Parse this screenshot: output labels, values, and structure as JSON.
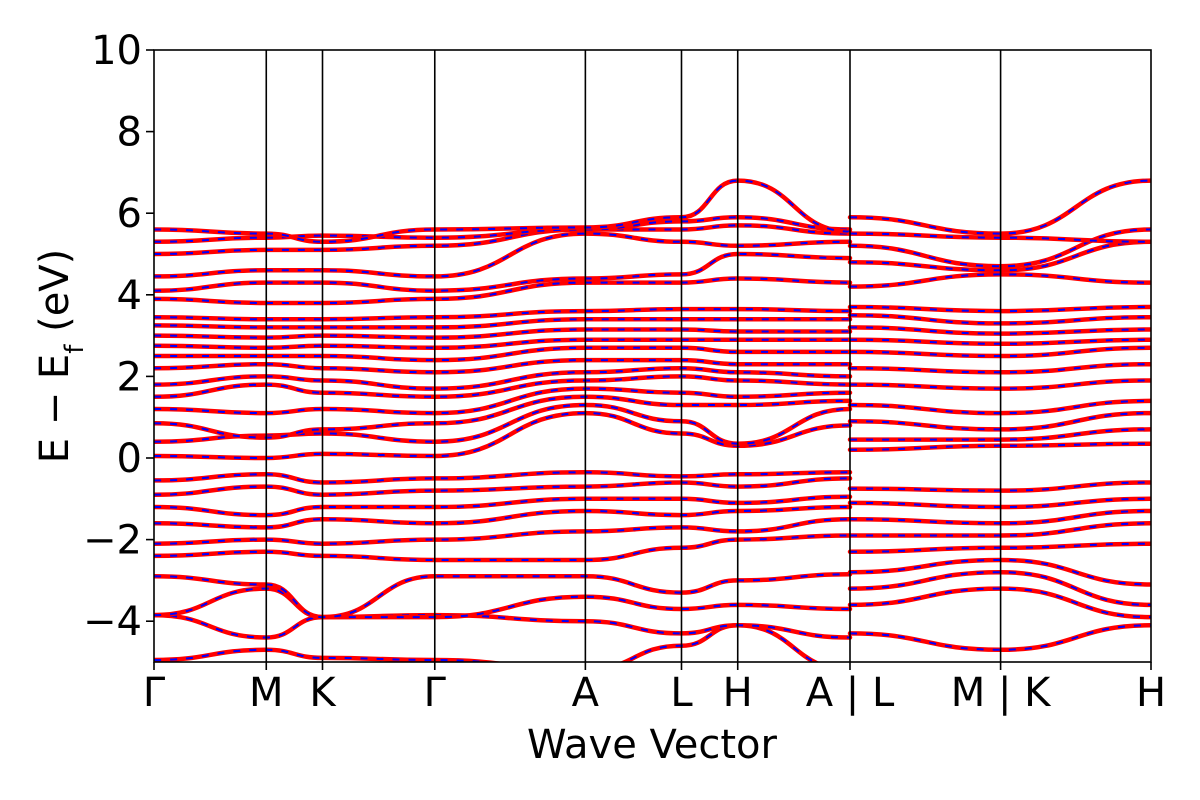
{
  "chart_data": {
    "type": "line",
    "xlabel": "Wave Vector",
    "ylabel": "E − E_f (eV)",
    "ylabel_parts": {
      "main": "E − E",
      "sub": "f",
      "tail": " (eV)"
    },
    "ylim": [
      -5,
      10
    ],
    "yticks": [
      -4,
      -2,
      0,
      2,
      4,
      6,
      8,
      10
    ],
    "ytick_labels": [
      "−4",
      "−2",
      "0",
      "2",
      "4",
      "6",
      "8",
      "10"
    ],
    "grid": false,
    "line_colors": [
      "#ff0000",
      "#0000ff"
    ],
    "line_style": "red solid band overlaid by blue dashed band",
    "kpath": {
      "positions": [
        0,
        0.577,
        0.866,
        1.443,
        2.217,
        2.711,
        3.0,
        3.577,
        4.351,
        5.124
      ],
      "labels": [
        "Γ",
        "M",
        "K",
        "Γ",
        "A",
        "L",
        "H",
        "A | L",
        "M | K",
        "H"
      ]
    },
    "bands": [
      {
        "x": [
          0,
          0.577,
          0.866,
          1.443,
          2.217,
          2.711,
          3.0,
          3.577
        ],
        "y": [
          -4.95,
          -4.7,
          -4.9,
          -4.95,
          -5.2,
          -4.6,
          -4.1,
          -5.2
        ]
      },
      {
        "x": [
          0,
          0.577,
          0.866,
          1.443,
          2.217,
          2.711,
          3.0,
          3.577
        ],
        "y": [
          -3.85,
          -4.4,
          -3.9,
          -3.85,
          -4.0,
          -4.3,
          -4.1,
          -4.4
        ]
      },
      {
        "x": [
          0,
          0.577,
          0.866,
          1.443,
          2.217,
          2.711,
          3.0,
          3.577
        ],
        "y": [
          -3.85,
          -3.2,
          -3.9,
          -3.9,
          -3.4,
          -3.7,
          -3.6,
          -3.7
        ]
      },
      {
        "x": [
          0,
          0.577,
          0.866,
          1.443,
          2.217,
          2.711,
          3.0,
          3.577
        ],
        "y": [
          -2.9,
          -3.1,
          -3.9,
          -2.9,
          -2.9,
          -3.3,
          -3.0,
          -2.85
        ]
      },
      {
        "x": [
          0,
          0.577,
          0.866,
          1.443,
          2.217,
          2.711,
          3.0,
          3.577
        ],
        "y": [
          -2.4,
          -2.3,
          -2.4,
          -2.5,
          -2.5,
          -2.2,
          -2.0,
          -1.9
        ]
      },
      {
        "x": [
          0,
          0.577,
          0.866,
          1.443,
          2.217,
          2.711,
          3.0,
          3.577
        ],
        "y": [
          -2.1,
          -2.0,
          -2.1,
          -2.0,
          -1.8,
          -1.7,
          -1.8,
          -1.5
        ]
      },
      {
        "x": [
          0,
          0.577,
          0.866,
          1.443,
          2.217,
          2.711,
          3.0,
          3.577
        ],
        "y": [
          -1.6,
          -1.7,
          -1.5,
          -1.6,
          -1.3,
          -1.4,
          -1.3,
          -1.2
        ]
      },
      {
        "x": [
          0,
          0.577,
          0.866,
          1.443,
          2.217,
          2.711,
          3.0,
          3.577
        ],
        "y": [
          -1.2,
          -1.4,
          -1.2,
          -1.2,
          -1.0,
          -1.0,
          -1.1,
          -0.95
        ]
      },
      {
        "x": [
          0,
          0.577,
          0.866,
          1.443,
          2.217,
          2.711,
          3.0,
          3.577
        ],
        "y": [
          -0.9,
          -0.7,
          -0.9,
          -0.8,
          -0.7,
          -0.6,
          -0.7,
          -0.5
        ]
      },
      {
        "x": [
          0,
          0.577,
          0.866,
          1.443,
          2.217,
          2.711,
          3.0,
          3.577
        ],
        "y": [
          -0.55,
          -0.4,
          -0.6,
          -0.5,
          -0.35,
          -0.45,
          -0.4,
          -0.35
        ]
      },
      {
        "x": [
          0,
          0.577,
          0.866,
          1.443,
          2.217,
          2.711,
          3.0,
          3.577
        ],
        "y": [
          0.05,
          0.0,
          0.1,
          0.05,
          1.1,
          0.6,
          0.3,
          0.8
        ]
      },
      {
        "x": [
          0,
          0.577,
          0.866,
          1.443,
          2.217,
          2.711,
          3.0,
          3.577
        ],
        "y": [
          0.4,
          0.55,
          0.6,
          0.4,
          1.3,
          0.9,
          0.35,
          1.2
        ]
      },
      {
        "x": [
          0,
          0.577,
          0.866,
          1.443,
          2.217,
          2.711,
          3.0,
          3.577
        ],
        "y": [
          0.85,
          0.5,
          0.7,
          0.85,
          1.5,
          1.3,
          1.3,
          1.4
        ]
      },
      {
        "x": [
          0,
          0.577,
          0.866,
          1.443,
          2.217,
          2.711,
          3.0,
          3.577
        ],
        "y": [
          1.2,
          1.1,
          1.2,
          1.1,
          1.7,
          1.6,
          1.5,
          1.6
        ]
      },
      {
        "x": [
          0,
          0.577,
          0.866,
          1.443,
          2.217,
          2.711,
          3.0,
          3.577
        ],
        "y": [
          1.5,
          1.8,
          1.6,
          1.5,
          1.9,
          2.0,
          1.9,
          1.8
        ]
      },
      {
        "x": [
          0,
          0.577,
          0.866,
          1.443,
          2.217,
          2.711,
          3.0,
          3.577
        ],
        "y": [
          1.8,
          2.0,
          1.9,
          1.7,
          2.1,
          2.2,
          2.1,
          2.0
        ]
      },
      {
        "x": [
          0,
          0.577,
          0.866,
          1.443,
          2.217,
          2.711,
          3.0,
          3.577
        ],
        "y": [
          2.2,
          2.3,
          2.2,
          2.1,
          2.4,
          2.4,
          2.3,
          2.3
        ]
      },
      {
        "x": [
          0,
          0.577,
          0.866,
          1.443,
          2.217,
          2.711,
          3.0,
          3.577
        ],
        "y": [
          2.5,
          2.5,
          2.5,
          2.4,
          2.7,
          2.7,
          2.6,
          2.6
        ]
      },
      {
        "x": [
          0,
          0.577,
          0.866,
          1.443,
          2.217,
          2.711,
          3.0,
          3.577
        ],
        "y": [
          2.75,
          2.7,
          2.75,
          2.7,
          2.9,
          2.9,
          2.9,
          2.9
        ]
      },
      {
        "x": [
          0,
          0.577,
          0.866,
          1.443,
          2.217,
          2.711,
          3.0,
          3.577
        ],
        "y": [
          3.0,
          2.95,
          3.0,
          2.95,
          3.15,
          3.15,
          3.1,
          3.1
        ]
      },
      {
        "x": [
          0,
          0.577,
          0.866,
          1.443,
          2.217,
          2.711,
          3.0,
          3.577
        ],
        "y": [
          3.25,
          3.2,
          3.2,
          3.2,
          3.4,
          3.4,
          3.4,
          3.4
        ]
      },
      {
        "x": [
          0,
          0.577,
          0.866,
          1.443,
          2.217,
          2.711,
          3.0,
          3.577
        ],
        "y": [
          3.45,
          3.4,
          3.4,
          3.45,
          3.6,
          3.65,
          3.65,
          3.6
        ]
      },
      {
        "x": [
          0,
          0.577,
          0.866,
          1.443,
          2.217,
          2.711,
          3.0,
          3.577
        ],
        "y": [
          3.9,
          3.8,
          3.8,
          3.9,
          4.3,
          4.3,
          4.4,
          4.3
        ]
      },
      {
        "x": [
          0,
          0.577,
          0.866,
          1.443,
          2.217,
          2.711,
          3.0,
          3.577
        ],
        "y": [
          4.1,
          4.3,
          4.3,
          4.1,
          4.4,
          4.5,
          5.0,
          4.9
        ]
      },
      {
        "x": [
          0,
          0.577,
          0.866,
          1.443,
          2.217,
          2.711,
          3.0,
          3.577
        ],
        "y": [
          4.45,
          4.6,
          4.6,
          4.45,
          5.5,
          5.3,
          5.2,
          5.3
        ]
      },
      {
        "x": [
          0,
          0.577,
          0.866,
          1.443,
          2.217,
          2.711,
          3.0,
          3.577
        ],
        "y": [
          5.0,
          5.1,
          5.1,
          5.2,
          5.6,
          5.6,
          5.7,
          5.5
        ]
      },
      {
        "x": [
          0,
          0.577,
          0.866,
          1.443,
          2.217,
          2.711,
          3.0,
          3.577
        ],
        "y": [
          5.3,
          5.4,
          5.45,
          5.4,
          5.6,
          5.8,
          5.9,
          5.6
        ]
      },
      {
        "x": [
          0,
          0.577,
          0.866,
          1.443,
          2.217,
          2.711,
          3.0,
          3.577
        ],
        "y": [
          5.6,
          5.5,
          5.3,
          5.6,
          5.65,
          5.9,
          6.8,
          5.55
        ]
      },
      {
        "x": [
          3.577,
          4.351,
          5.124
        ],
        "y": [
          -4.3,
          -4.7,
          -4.1
        ]
      },
      {
        "x": [
          3.577,
          4.351,
          5.124
        ],
        "y": [
          -3.6,
          -3.2,
          -3.9
        ]
      },
      {
        "x": [
          3.577,
          4.351,
          5.124
        ],
        "y": [
          -3.2,
          -2.8,
          -3.6
        ]
      },
      {
        "x": [
          3.577,
          4.351,
          5.124
        ],
        "y": [
          -2.8,
          -2.5,
          -3.1
        ]
      },
      {
        "x": [
          3.577,
          4.351,
          5.124
        ],
        "y": [
          -2.3,
          -2.2,
          -2.1
        ]
      },
      {
        "x": [
          3.577,
          4.351,
          5.124
        ],
        "y": [
          -1.9,
          -1.9,
          -1.6
        ]
      },
      {
        "x": [
          3.577,
          4.351,
          5.124
        ],
        "y": [
          -1.5,
          -1.6,
          -1.3
        ]
      },
      {
        "x": [
          3.577,
          4.351,
          5.124
        ],
        "y": [
          -1.1,
          -1.2,
          -1.0
        ]
      },
      {
        "x": [
          3.577,
          4.351,
          5.124
        ],
        "y": [
          -0.75,
          -0.8,
          -0.6
        ]
      },
      {
        "x": [
          3.577,
          4.351,
          5.124
        ],
        "y": [
          0.2,
          0.3,
          0.35
        ]
      },
      {
        "x": [
          3.577,
          4.351,
          5.124
        ],
        "y": [
          0.45,
          0.45,
          0.7
        ]
      },
      {
        "x": [
          3.577,
          4.351,
          5.124
        ],
        "y": [
          0.9,
          0.7,
          1.1
        ]
      },
      {
        "x": [
          3.577,
          4.351,
          5.124
        ],
        "y": [
          1.3,
          1.1,
          1.4
        ]
      },
      {
        "x": [
          3.577,
          4.351,
          5.124
        ],
        "y": [
          1.8,
          1.7,
          1.9
        ]
      },
      {
        "x": [
          3.577,
          4.351,
          5.124
        ],
        "y": [
          2.2,
          2.1,
          2.3
        ]
      },
      {
        "x": [
          3.577,
          4.351,
          5.124
        ],
        "y": [
          2.6,
          2.5,
          2.7
        ]
      },
      {
        "x": [
          3.577,
          4.351,
          5.124
        ],
        "y": [
          2.9,
          2.8,
          2.9
        ]
      },
      {
        "x": [
          3.577,
          4.351,
          5.124
        ],
        "y": [
          3.2,
          3.05,
          3.15
        ]
      },
      {
        "x": [
          3.577,
          4.351,
          5.124
        ],
        "y": [
          3.5,
          3.3,
          3.45
        ]
      },
      {
        "x": [
          3.577,
          4.351,
          5.124
        ],
        "y": [
          3.7,
          3.6,
          3.7
        ]
      },
      {
        "x": [
          3.577,
          4.351,
          5.124
        ],
        "y": [
          4.2,
          4.5,
          4.3
        ]
      },
      {
        "x": [
          3.577,
          4.351,
          5.124
        ],
        "y": [
          4.8,
          4.6,
          5.3
        ]
      },
      {
        "x": [
          3.577,
          4.351,
          5.124
        ],
        "y": [
          5.2,
          4.7,
          5.6
        ]
      },
      {
        "x": [
          3.577,
          4.351,
          5.124
        ],
        "y": [
          5.5,
          5.4,
          5.3
        ]
      },
      {
        "x": [
          3.577,
          4.351,
          5.124
        ],
        "y": [
          5.9,
          5.5,
          6.8
        ]
      }
    ]
  }
}
